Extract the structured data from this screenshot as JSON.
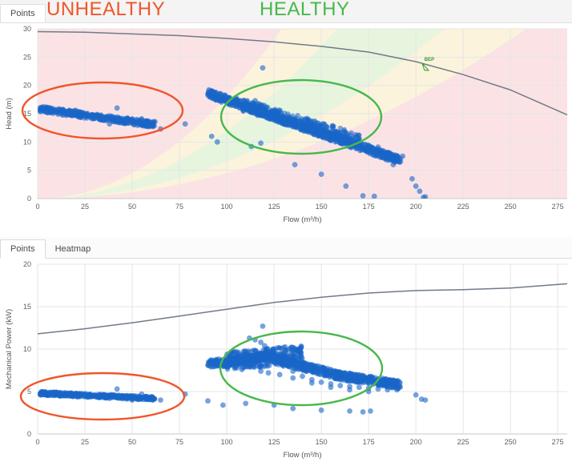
{
  "tabs_top": [
    {
      "label": "Points",
      "active": true
    }
  ],
  "tabs_bottom": [
    {
      "label": "Points",
      "active": true
    },
    {
      "label": "Heatmap",
      "active": false
    }
  ],
  "annotations": {
    "unhealthy_label": "UNHEALTHY",
    "healthy_label": "HEALTHY",
    "unhealthy_color": "#f0552a",
    "healthy_color": "#47b84a",
    "bep_label": "BEP"
  },
  "colors": {
    "points": "#1a66c8",
    "curve": "#707b88",
    "zone_red": "#fbe3e5",
    "zone_yellow": "#fbf3dc",
    "zone_green": "#e7f5df",
    "grid": "#e5e5e5"
  },
  "chart_data": [
    {
      "type": "scatter",
      "xlabel": "Flow (m³/h)",
      "ylabel": "Head (m)",
      "xlim": [
        0,
        280
      ],
      "ylim": [
        0,
        30
      ],
      "x_ticks": [
        0,
        25,
        50,
        75,
        100,
        125,
        150,
        175,
        200,
        225,
        250,
        275
      ],
      "y_ticks": [
        0,
        5,
        10,
        15,
        20,
        25,
        30
      ],
      "grid": true,
      "pump_curve": {
        "x": [
          0,
          25,
          50,
          75,
          100,
          125,
          150,
          175,
          200,
          225,
          250,
          280
        ],
        "y": [
          29.5,
          29.4,
          29.1,
          28.8,
          28.3,
          27.7,
          26.9,
          25.9,
          24.2,
          21.9,
          19.2,
          14.8
        ]
      },
      "bep": {
        "x": 205,
        "y": 23.5
      },
      "series": [
        {
          "x": [
            2,
            5,
            8,
            10,
            12,
            15,
            18,
            20,
            22,
            25,
            28,
            30,
            32,
            35,
            38,
            40,
            42,
            45,
            48,
            50,
            52,
            55,
            58,
            60,
            42,
            38,
            55,
            62,
            65,
            78,
            10,
            20,
            30,
            46,
            50
          ],
          "y": [
            15.9,
            15.8,
            15.6,
            15.6,
            15.4,
            15.3,
            15.2,
            15.1,
            15.0,
            14.9,
            14.7,
            14.6,
            14.5,
            14.4,
            14.3,
            14.1,
            14.0,
            13.9,
            13.8,
            13.6,
            13.5,
            13.3,
            13.2,
            13.0,
            16.0,
            13.2,
            14.1,
            13.6,
            12.3,
            13.2,
            15.2,
            15.6,
            14.2,
            13.3,
            13.9
          ]
        },
        {
          "x": [
            90,
            95,
            100,
            105,
            110,
            115,
            120,
            125,
            130,
            135,
            140,
            145,
            150,
            155,
            160,
            165,
            170,
            175,
            180,
            185,
            190,
            110,
            120,
            130,
            140,
            150,
            160,
            170,
            180,
            115,
            125,
            135,
            145,
            155,
            165,
            175,
            119,
            105,
            113,
            118,
            95,
            92,
            136,
            150,
            163,
            172,
            178,
            188,
            198,
            200,
            202,
            204,
            205,
            188,
            193,
            183
          ],
          "y": [
            18.5,
            18.2,
            17.6,
            17.0,
            16.4,
            15.8,
            15.2,
            14.6,
            14.0,
            13.5,
            13.0,
            12.5,
            12.0,
            11.5,
            11.0,
            10.5,
            10.0,
            9.4,
            8.7,
            8.1,
            7.5,
            16.0,
            15.6,
            14.5,
            13.3,
            12.6,
            11.7,
            10.6,
            9.1,
            17.3,
            14.2,
            13.9,
            12.9,
            11.1,
            10.1,
            9.0,
            23.1,
            17.8,
            9.2,
            9.8,
            10.0,
            11.0,
            6.0,
            4.3,
            2.2,
            0.5,
            0.4,
            6.0,
            3.5,
            2.2,
            1.3,
            0.2,
            0.3,
            6.7,
            7.5,
            8.4
          ]
        }
      ]
    },
    {
      "type": "scatter",
      "xlabel": "Flow (m³/h)",
      "ylabel": "Mechanical Power (kW)",
      "xlim": [
        0,
        280
      ],
      "ylim": [
        0,
        20
      ],
      "x_ticks": [
        0,
        25,
        50,
        75,
        100,
        125,
        150,
        175,
        200,
        225,
        250,
        275
      ],
      "y_ticks": [
        0,
        5,
        10,
        15,
        20
      ],
      "grid": true,
      "power_curve": {
        "x": [
          0,
          25,
          50,
          75,
          100,
          125,
          150,
          175,
          200,
          225,
          250,
          280
        ],
        "y": [
          11.8,
          12.4,
          13.1,
          13.9,
          14.7,
          15.5,
          16.1,
          16.6,
          16.9,
          17.0,
          17.2,
          17.7
        ]
      },
      "series": [
        {
          "x": [
            2,
            5,
            8,
            10,
            12,
            15,
            18,
            20,
            22,
            25,
            28,
            30,
            32,
            35,
            38,
            40,
            42,
            45,
            48,
            50,
            52,
            55,
            58,
            60,
            42,
            55,
            65,
            78,
            10,
            25,
            38,
            50
          ],
          "y": [
            4.8,
            4.7,
            4.8,
            4.7,
            4.6,
            4.7,
            4.6,
            4.6,
            4.5,
            4.6,
            4.5,
            4.5,
            4.4,
            4.5,
            4.4,
            4.4,
            4.3,
            4.4,
            4.3,
            4.3,
            4.2,
            4.3,
            4.2,
            4.2,
            5.3,
            4.7,
            4.0,
            4.7,
            4.9,
            4.4,
            4.2,
            4.0
          ]
        },
        {
          "x": [
            90,
            95,
            100,
            105,
            110,
            115,
            120,
            125,
            130,
            135,
            140,
            145,
            150,
            155,
            160,
            165,
            170,
            175,
            180,
            185,
            190,
            105,
            110,
            115,
            120,
            125,
            130,
            100,
            108,
            118,
            122,
            128,
            135,
            145,
            155,
            165,
            175,
            119,
            112,
            115,
            118,
            90,
            98,
            135,
            150,
            165,
            172,
            176,
            200,
            203,
            205,
            110,
            125
          ],
          "y": [
            8.1,
            8.2,
            8.4,
            8.6,
            8.8,
            8.9,
            9.0,
            8.7,
            8.0,
            7.4,
            6.8,
            6.4,
            6.1,
            5.9,
            5.7,
            5.6,
            5.5,
            5.4,
            5.3,
            5.2,
            5.2,
            9.1,
            9.4,
            9.8,
            10.4,
            10.0,
            9.2,
            7.9,
            7.6,
            7.4,
            7.2,
            7.0,
            6.6,
            6.0,
            5.5,
            5.2,
            5.0,
            12.7,
            11.3,
            11.1,
            10.8,
            3.9,
            3.4,
            3.0,
            2.8,
            2.7,
            2.6,
            2.7,
            4.6,
            4.1,
            4.0,
            3.6,
            3.4
          ]
        }
      ]
    }
  ]
}
